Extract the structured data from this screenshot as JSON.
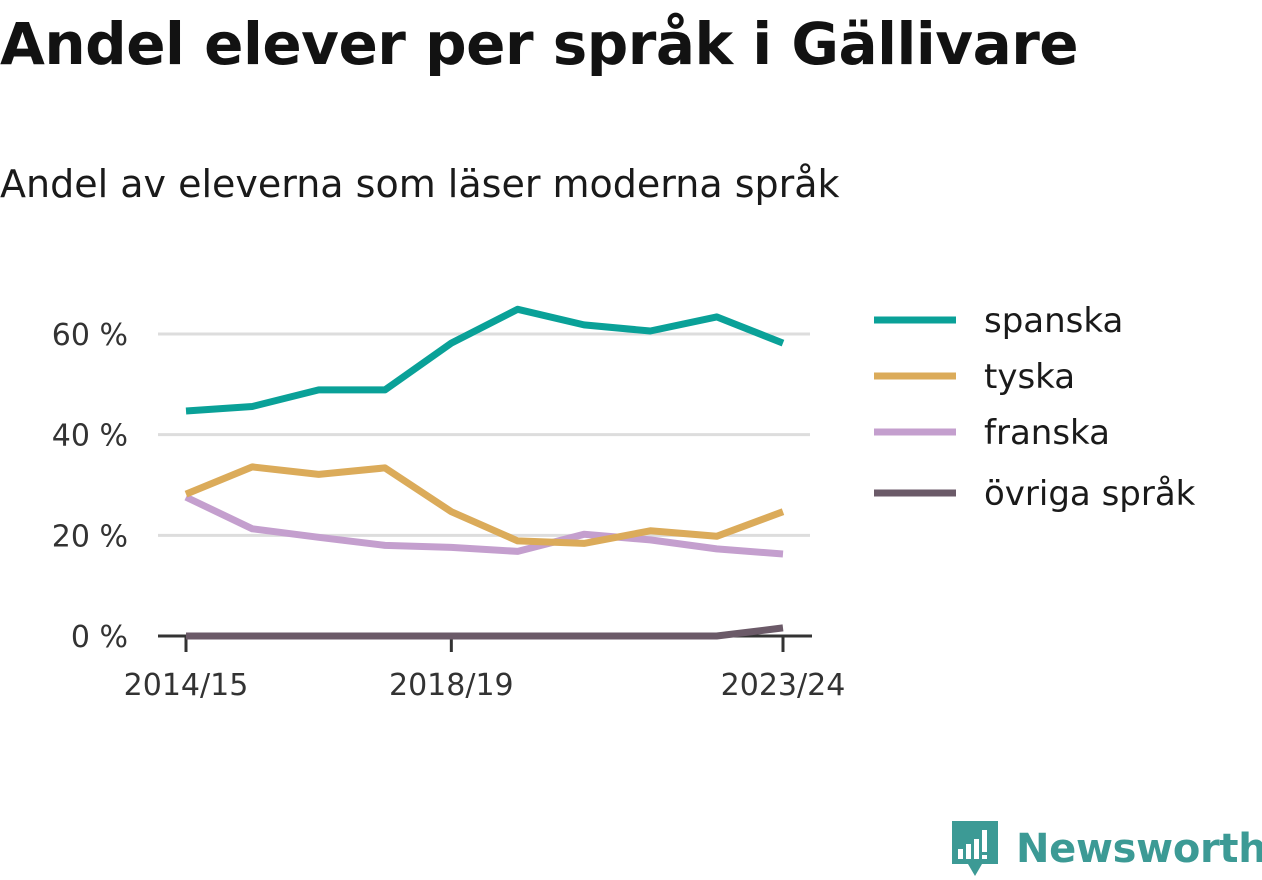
{
  "chart_data": {
    "type": "line",
    "title": "Andel elever per språk i Gällivare",
    "subtitle": "Andel av eleverna som läser moderna språk",
    "x": [
      "2014/15",
      "2015/16",
      "2016/17",
      "2017/18",
      "2018/19",
      "2019/20",
      "2020/21",
      "2021/22",
      "2022/23",
      "2023/24"
    ],
    "x_tick_labels": [
      "2014/15",
      "2018/19",
      "2023/24"
    ],
    "y_ticks": [
      0,
      20,
      40,
      60
    ],
    "y_tick_labels": [
      "0 %",
      "20 %",
      "40 %",
      "60 %"
    ],
    "ylim": [
      0,
      66
    ],
    "grid": true,
    "legend_position": "right",
    "series": [
      {
        "name": "spanska",
        "color": "#0aa198",
        "values": [
          44.7,
          45.6,
          48.9,
          48.9,
          58.2,
          64.9,
          61.8,
          60.6,
          63.4,
          58.2
        ]
      },
      {
        "name": "tyska",
        "color": "#dbab5a",
        "values": [
          28.2,
          33.6,
          32.1,
          33.4,
          24.7,
          18.9,
          18.4,
          20.9,
          19.8,
          24.7
        ]
      },
      {
        "name": "franska",
        "color": "#c49fce",
        "values": [
          27.6,
          21.3,
          19.6,
          18.0,
          17.6,
          16.8,
          20.2,
          19.1,
          17.3,
          16.3
        ]
      },
      {
        "name": "övriga språk",
        "color": "#6b5a68",
        "values": [
          0,
          0,
          0,
          0,
          0,
          0,
          0,
          0,
          0,
          1.6
        ]
      }
    ]
  },
  "brand": {
    "name": "Newsworthy",
    "color": "#3c9a95",
    "icon": "newsworthy-logo-icon"
  }
}
